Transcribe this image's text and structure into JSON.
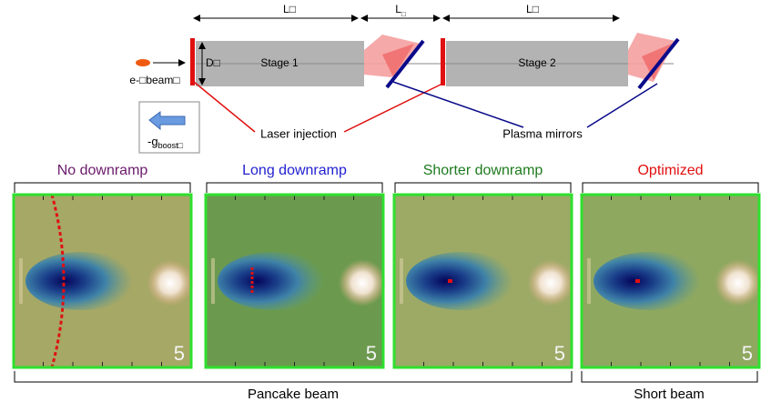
{
  "diagram": {
    "lengths": {
      "first": "L□",
      "gap": {
        "main": "L",
        "sub": "□"
      },
      "second": "L□"
    },
    "driver": {
      "width": "D□",
      "beam": "e-□beam□"
    },
    "stages": [
      "Stage 1",
      "Stage 2"
    ],
    "boost": {
      "main": "-g",
      "sub": "boost□"
    },
    "callouts": {
      "laser": "Laser injection",
      "mirrors": "Plasma mirrors"
    }
  },
  "panels": [
    {
      "title": "No downramp",
      "title_color": "#6a1b6a",
      "number": "5"
    },
    {
      "title": "Long downramp",
      "title_color": "#1f1fd0",
      "number": "5"
    },
    {
      "title": "Shorter downramp",
      "title_color": "#1e7a1e",
      "number": "5"
    },
    {
      "title": "Optimized",
      "title_color": "#e01010",
      "number": "5"
    }
  ],
  "groups": [
    "Pancake beam",
    "Short beam"
  ]
}
